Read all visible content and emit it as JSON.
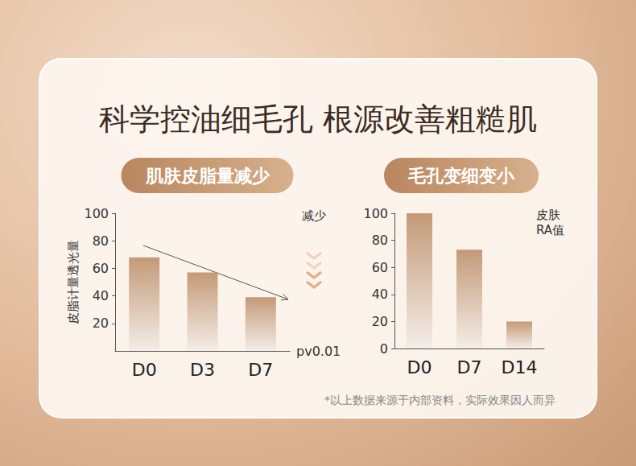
{
  "title": "科学控油细毛孔 根源改善粗糙肌",
  "footnote": "*以上数据来源于内部资料，实际效果因人而异",
  "chart_data": [
    {
      "type": "bar",
      "title": "肌肤皮脂量减少",
      "y_label": "皮脂计量透光量",
      "categories": [
        "D0",
        "D3",
        "D7"
      ],
      "values": [
        68,
        57,
        39
      ],
      "color": "#c49a78",
      "ylim": [
        0,
        100
      ],
      "yticks": [
        20,
        40,
        60,
        80,
        100
      ],
      "grid": false,
      "annotations": [
        "减少",
        "pv0.01"
      ]
    },
    {
      "type": "bar",
      "title": "毛孔变细变小",
      "categories": [
        "D0",
        "D7",
        "D14"
      ],
      "values": [
        100,
        73,
        20
      ],
      "color": "#c49a78",
      "ylim": [
        0,
        100
      ],
      "yticks": [
        0,
        20,
        40,
        60,
        80,
        100
      ],
      "grid": false,
      "annotations": [
        "皮肤RA值"
      ]
    }
  ]
}
